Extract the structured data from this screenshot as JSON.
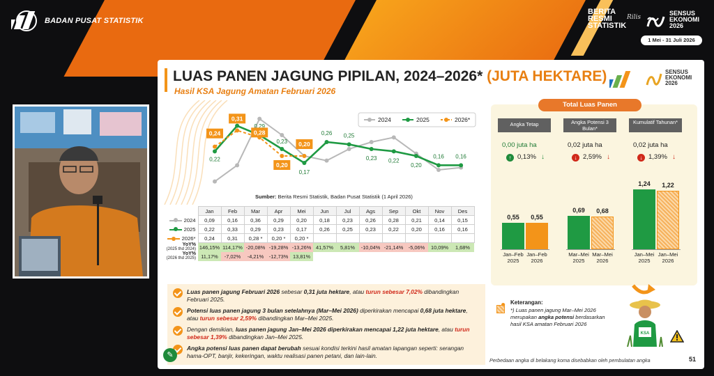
{
  "header": {
    "org_name": "BADAN PUSAT STATISTIK",
    "brs_line1": "BERITA",
    "brs_line2": "RESMI",
    "brs_line3": "STATISTIK",
    "brs_script": "Rilis",
    "se_line1": "SENSUS",
    "se_line2": "EKONOMI",
    "se_line3": "2026",
    "date_range": "1 Mei - 31 Juli 2026"
  },
  "slide": {
    "title_main": "LUAS PANEN JAGUNG PIPILAN, 2024–2026* ",
    "title_unit": "(JUTA HEKTARE)",
    "subtitle": "Hasil KSA Jagung Amatan Februari 2026",
    "mini_se": "SENSUS\nEKONOMI\n2026",
    "source_label": "Sumber:",
    "source_text": " Berita Resmi Statistik, Badan Pusat Statistik (1 April 2026)",
    "page_number": "51",
    "footer_note": "Perbedaan angka di belakang koma disebabkan oleh pembulatan angka"
  },
  "colors": {
    "s2024": "#b8b8b8",
    "s2025": "#1f9a43",
    "s2026": "#f39419",
    "accent": "#e87f12",
    "red": "#d0291a"
  },
  "chart_data": [
    {
      "type": "line",
      "categories": [
        "Jan",
        "Feb",
        "Mar",
        "Apr",
        "Mei",
        "Jun",
        "Jul",
        "Ags",
        "Sep",
        "Okt",
        "Nov",
        "Des"
      ],
      "series": [
        {
          "name": "2024",
          "values": [
            0.09,
            0.16,
            0.36,
            0.29,
            0.2,
            0.18,
            0.23,
            0.26,
            0.28,
            0.21,
            0.14,
            0.15
          ]
        },
        {
          "name": "2025",
          "values": [
            0.22,
            0.33,
            0.29,
            0.23,
            0.17,
            0.26,
            0.25,
            0.23,
            0.22,
            0.2,
            0.16,
            0.16
          ]
        },
        {
          "name": "2026*",
          "values": [
            0.24,
            0.31,
            0.28,
            0.2,
            0.2,
            null,
            null,
            null,
            null,
            null,
            null,
            null
          ]
        }
      ],
      "data_labels": {
        "2025": [
          "0,22",
          "0,33",
          "0,29",
          "0,23",
          "0,17",
          "0,26",
          "0,25",
          "0,23",
          "0,22",
          "0,20",
          "0,16",
          "0,16"
        ],
        "2026*": [
          "0,24",
          "0,31",
          "0,28",
          "0,20",
          "0,20"
        ]
      },
      "legend": [
        "2024",
        "2025",
        "2026*"
      ],
      "legend_position": "top-right",
      "ylim": [
        0,
        0.4
      ]
    },
    {
      "type": "bar",
      "title": "Total Luas Panen",
      "groups": [
        {
          "label": "Angka Tetap",
          "bars": [
            {
              "x": "Jan–Feb 2025",
              "value": 0.55,
              "label": "0,55"
            },
            {
              "x": "Jan–Feb 2026",
              "value": 0.55,
              "label": "0,55"
            }
          ],
          "change_value": "0,00 juta ha",
          "change_pct": "0,13%",
          "direction": "up"
        },
        {
          "label": "Angka Potensi 3 Bulan*",
          "bars": [
            {
              "x": "Mar–Mei 2025",
              "value": 0.69,
              "label": "0,69"
            },
            {
              "x": "Mar–Mei 2026",
              "value": 0.68,
              "label": "0,68"
            }
          ],
          "change_value": "0,02 juta ha",
          "change_pct": "2,59%",
          "direction": "down"
        },
        {
          "label": "Kumulatif Tahunan*",
          "bars": [
            {
              "x": "Jan–Mei 2025",
              "value": 1.24,
              "label": "1,24"
            },
            {
              "x": "Jan–Mei 2026",
              "value": 1.22,
              "label": "1,22"
            }
          ],
          "change_value": "0,02 juta ha",
          "change_pct": "1,39%",
          "direction": "down"
        }
      ]
    }
  ],
  "table": {
    "months": [
      "Jan",
      "Feb",
      "Mar",
      "Apr",
      "Mei",
      "Jun",
      "Jul",
      "Ags",
      "Sep",
      "Okt",
      "Nov",
      "Des"
    ],
    "row2024": [
      "0,09",
      "0,16",
      "0,36",
      "0,29",
      "0,20",
      "0,18",
      "0,23",
      "0,26",
      "0,28",
      "0,21",
      "0,14",
      "0,15"
    ],
    "row2025": [
      "0,22",
      "0,33",
      "0,29",
      "0,23",
      "0,17",
      "0,26",
      "0,25",
      "0,23",
      "0,22",
      "0,20",
      "0,16",
      "0,16"
    ],
    "row2026": [
      "0,24",
      "0,31",
      "0,28 *",
      "0,20 *",
      "0,20 *",
      "",
      "",
      "",
      "",
      "",
      "",
      ""
    ],
    "yoy1": [
      "146,15%",
      "114,17%",
      "-20,08%",
      "-19,28%",
      "-13,26%",
      "41,57%",
      "5,81%",
      "-10,04%",
      "-21,14%",
      "-5,06%",
      "10,09%",
      "1,68%"
    ],
    "yoy2": [
      "11,17%",
      "-7,02%",
      "-4,21%",
      "-12,73%",
      "13,81%",
      "",
      "",
      "",
      "",
      "",
      "",
      ""
    ],
    "yoy1_label_a": "YoY%",
    "yoy1_label_b": "(2025 thd 2024)",
    "yoy2_label_a": "YoY%",
    "yoy2_label_b": "(2026 thd 2025)",
    "label2024": "2024",
    "label2025": "2025",
    "label2026": "2026*"
  },
  "notes": [
    {
      "a": "Luas panen jagung Februari 2026 ",
      "b": "sebesar ",
      "c": "0,31 juta hektare",
      "d": ", atau ",
      "e": "turun sebesar 7,02%",
      "f": " dibandingkan Februari 2025."
    },
    {
      "a": "Potensi luas panen jagung 3 bulan setelahnya (Mar–Mei 2026) ",
      "b": "diperkirakan mencapai ",
      "c": "0,68 juta hektare",
      "d": ", atau ",
      "e": "turun sebesar 2,59%",
      "f": " dibandingkan Mar–Mei 2025."
    },
    {
      "a": "Dengan demikian, ",
      "b": "luas panen jagung Jan–Mei 2026 ",
      "c": "diperkirakan mencapai 1,22 juta hektare",
      "d": ", atau ",
      "e": "turun sebesar 1,39%",
      "f": " dibandingkan Jan–Mei 2025."
    },
    {
      "a": "Angka potensi luas panen dapat berubah ",
      "b": "sesuai kondisi terkini hasil amatan lapangan seperti: ",
      "c": "",
      "d": "serangan hama-OPT, banjir, kekeringan, waktu realisasi panen petani, dan lain-lain.",
      "e": "",
      "f": ""
    }
  ],
  "keterangan": {
    "title": "Keterangan:",
    "body_a": "*) Luas panen jagung Mar–Mei 2026 merupakan ",
    "body_b": "angka potensi",
    "body_c": " berdasarkan hasil KSA amatan Februari 2026",
    "farmer_badge": "KSA"
  }
}
